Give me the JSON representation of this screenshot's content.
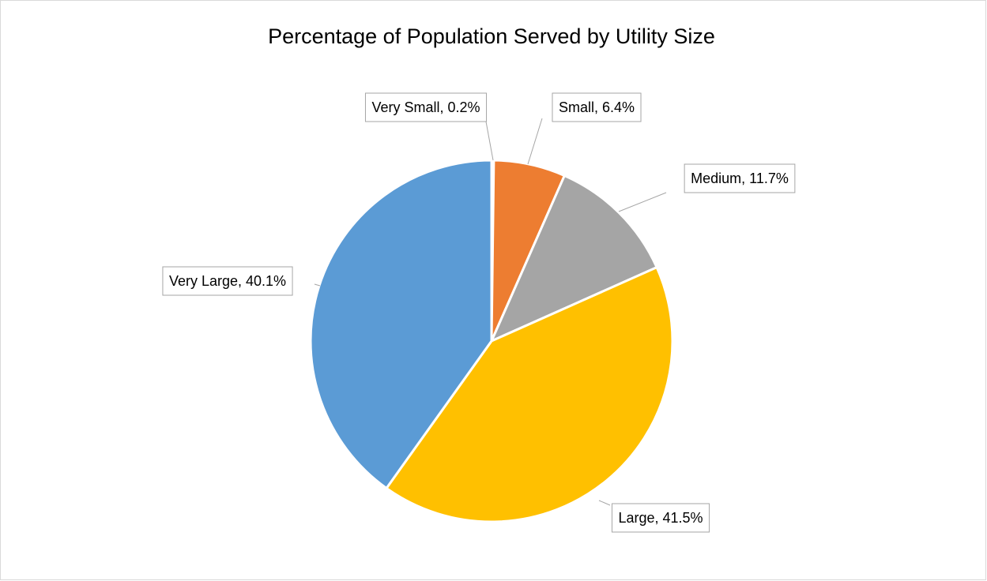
{
  "chart_data": {
    "type": "pie",
    "title": "Percentage of Population Served by Utility Size",
    "values": [
      0.2,
      6.4,
      11.7,
      41.5,
      40.1
    ],
    "value_labels": [
      "Very Small, 0.2%",
      "Small, 6.4%",
      "Medium, 11.7%",
      "Large, 41.5%",
      "Very Large, 40.1%"
    ],
    "colors": [
      "#4472c4",
      "#ed7d31",
      "#a5a5a5",
      "#ffc000",
      "#5b9bd5"
    ]
  }
}
